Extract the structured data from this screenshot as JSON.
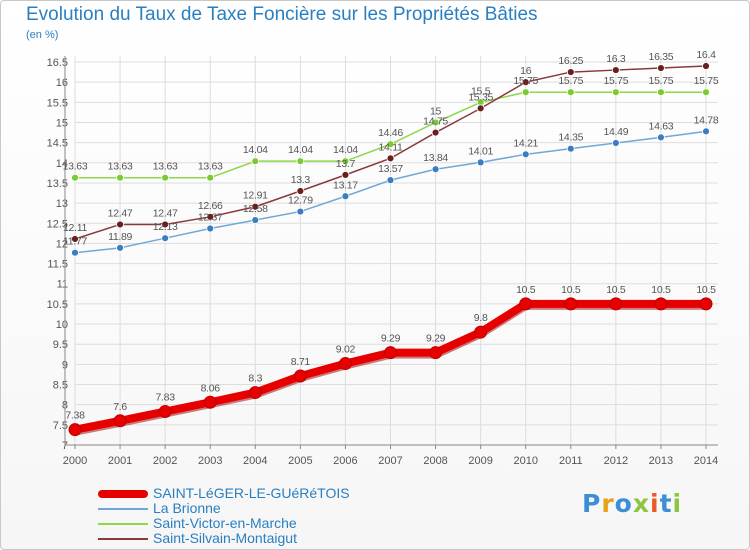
{
  "title": "Evolution du Taux de Taxe Foncière sur les Propriétés Bâties",
  "unit_label": "(en %)",
  "brand": "Proxiti",
  "colors": {
    "text": "#2a7fc0",
    "grid": "#dddddd",
    "axis": "#888888"
  },
  "chart_data": {
    "type": "line",
    "x": [
      "2000",
      "2001",
      "2002",
      "2003",
      "2004",
      "2005",
      "2006",
      "2007",
      "2008",
      "2009",
      "2010",
      "2011",
      "2012",
      "2013",
      "2014"
    ],
    "ylim": [
      7,
      16.5
    ],
    "yticks": [
      "7",
      "7.5",
      "8",
      "8.5",
      "9",
      "9.5",
      "10",
      "10.5",
      "11",
      "11.5",
      "12",
      "12.5",
      "13",
      "13.5",
      "14",
      "14.5",
      "15",
      "15.5",
      "16",
      "16.5"
    ],
    "grid": true,
    "legend_position": "bottom-left",
    "series": [
      {
        "name": "SAINT-LéGER-LE-GUéRéTOIS",
        "color": "#e60000",
        "marker": "#e60000",
        "width": 8,
        "markerSize": 6,
        "values": [
          7.38,
          7.6,
          7.83,
          8.06,
          8.3,
          8.71,
          9.02,
          9.29,
          9.29,
          9.8,
          10.5,
          10.5,
          10.5,
          10.5,
          10.5
        ],
        "labels": [
          "7.38",
          "7.6",
          "7.83",
          "8.06",
          "8.3",
          "8.71",
          "9.02",
          "9.29",
          "9.29",
          "9.8",
          "10.5",
          "10.5",
          "10.5",
          "10.5",
          "10.5"
        ]
      },
      {
        "name": "La Brionne",
        "color": "#6fa8d8",
        "marker": "#3a7dc0",
        "width": 1.5,
        "markerSize": 3.5,
        "values": [
          11.77,
          11.89,
          12.13,
          12.37,
          12.58,
          12.79,
          13.17,
          13.57,
          13.84,
          14.01,
          14.21,
          14.35,
          14.49,
          14.63,
          14.78
        ],
        "labels": [
          "11.77",
          "11.89",
          "12.13",
          "12.37",
          "12.58",
          "12.79",
          "13.17",
          "13.57",
          "13.84",
          "14.01",
          "14.21",
          "14.35",
          "14.49",
          "14.63",
          "14.78"
        ]
      },
      {
        "name": "Saint-Victor-en-Marche",
        "color": "#8fd64a",
        "marker": "#7acc2e",
        "width": 1.5,
        "markerSize": 3.5,
        "values": [
          13.63,
          13.63,
          13.63,
          13.63,
          14.04,
          14.04,
          14.04,
          14.46,
          15,
          15.5,
          15.75,
          15.75,
          15.75,
          15.75,
          15.75
        ],
        "labels": [
          "13.63",
          "13.63",
          "13.63",
          "13.63",
          "14.04",
          "14.04",
          "14.04",
          "14.46",
          "15",
          "15.5",
          "15.75",
          "15.75",
          "15.75",
          "15.75",
          "15.75"
        ]
      },
      {
        "name": "Saint-Silvain-Montaigut",
        "color": "#8a3a3a",
        "marker": "#6b1e1e",
        "width": 1.5,
        "markerSize": 3.5,
        "values": [
          12.11,
          12.47,
          12.47,
          12.66,
          12.91,
          13.3,
          13.7,
          14.11,
          14.75,
          15.35,
          16,
          16.25,
          16.3,
          16.35,
          16.4
        ],
        "labels": [
          "12.11",
          "12.47",
          "12.47",
          "12.66",
          "12.91",
          "13.3",
          "13.7",
          "14.11",
          "14.75",
          "15.35",
          "16",
          "16.25",
          "16.3",
          "16.35",
          "16.4"
        ]
      }
    ]
  }
}
